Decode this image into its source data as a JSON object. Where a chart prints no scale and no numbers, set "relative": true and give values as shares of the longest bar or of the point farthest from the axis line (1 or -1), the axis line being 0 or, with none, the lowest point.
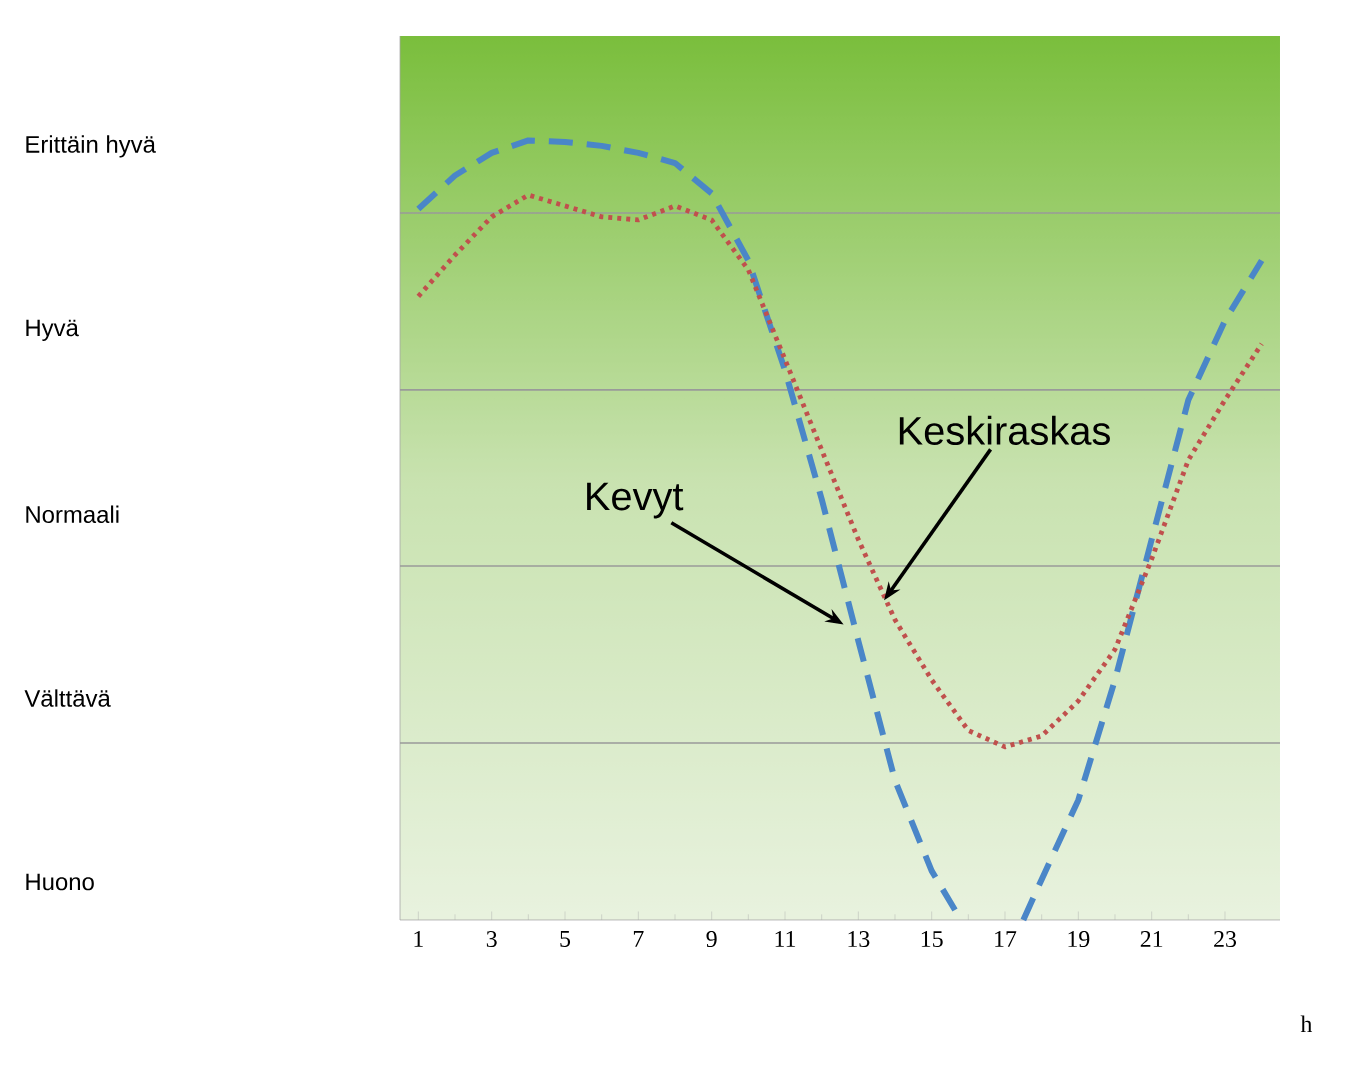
{
  "chart_data": {
    "type": "line",
    "relative": true,
    "xlabel": "h",
    "xlim": [
      0.5,
      24.5
    ],
    "xticks": [
      1,
      3,
      5,
      7,
      9,
      11,
      13,
      15,
      17,
      19,
      21,
      23
    ],
    "series": [
      {
        "color": "#4a86c8",
        "line_style": "dashed",
        "x": [
          1,
          2,
          3,
          4,
          5,
          6,
          7,
          8,
          9,
          10,
          11,
          12,
          13,
          14,
          15,
          15.8,
          16.6,
          17.5,
          18,
          19,
          20,
          21,
          22,
          23,
          24
        ],
        "values": [
          0.912,
          0.955,
          0.984,
          1,
          0.998,
          0.993,
          0.984,
          0.971,
          0.932,
          0.846,
          0.705,
          0.54,
          0.358,
          0.179,
          0.063,
          0,
          null,
          0,
          0.052,
          0.154,
          0.308,
          0.488,
          0.667,
          0.769,
          0.846
        ]
      },
      {
        "color": "#c0504d",
        "line_style": "dotted",
        "x": [
          1,
          2,
          3,
          4,
          5,
          6,
          7,
          8,
          9,
          10,
          11,
          12,
          13,
          14,
          15,
          16,
          17,
          18,
          19,
          20,
          21,
          22,
          23,
          24
        ],
        "values": [
          0.8,
          0.853,
          0.902,
          0.93,
          0.916,
          0.902,
          0.898,
          0.916,
          0.898,
          0.834,
          0.719,
          0.603,
          0.488,
          0.385,
          0.308,
          0.243,
          0.222,
          0.236,
          0.281,
          0.347,
          0.463,
          0.59,
          0.667,
          0.739
        ]
      }
    ],
    "ref_lines": [
      {
        "axis": "y",
        "value": 0.227,
        "color": "#9a9a9a"
      },
      {
        "axis": "y",
        "value": 0.454,
        "color": "#9a9a9a"
      },
      {
        "axis": "y",
        "value": 0.68,
        "color": "#9a9a9a"
      },
      {
        "axis": "y",
        "value": 0.907,
        "color": "#9a9a9a"
      }
    ],
    "annotations": [
      "Erittäin hyvä",
      "Hyvä",
      "Normaali",
      "Välttävä",
      "Huono",
      {
        "text": "Kevyt",
        "x": 12.6,
        "y": 0.379
      },
      {
        "text": "Keskiraskas",
        "x": 13.7,
        "y": 0.41
      }
    ]
  }
}
